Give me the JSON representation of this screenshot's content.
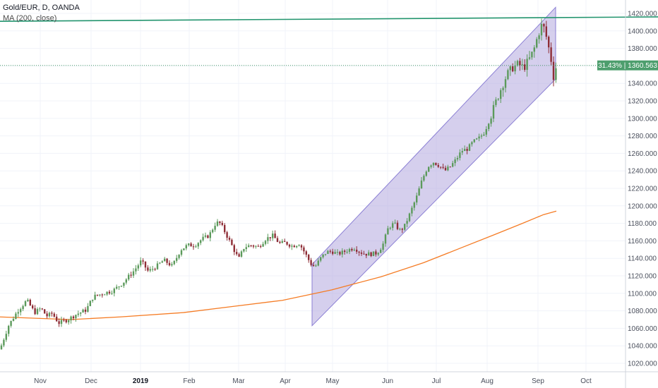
{
  "header": {
    "symbol": "Gold/EUR, D, OANDA",
    "indicator": "MA (200, close)"
  },
  "price_badge": {
    "percent": "31.43%",
    "value": "1360.563"
  },
  "chart_data": {
    "type": "candlestick",
    "title": "Gold/EUR, D, OANDA",
    "ylim": [
      1010,
      1430
    ],
    "y_ticks": [
      1020,
      1040,
      1060,
      1080,
      1100,
      1120,
      1140,
      1160,
      1180,
      1200,
      1220,
      1240,
      1260,
      1280,
      1300,
      1320,
      1340,
      1360,
      1380,
      1400,
      1420
    ],
    "x_ticks": [
      {
        "label": "Nov",
        "bold": false
      },
      {
        "label": "Dec",
        "bold": false
      },
      {
        "label": "2019",
        "bold": true
      },
      {
        "label": "Feb",
        "bold": false
      },
      {
        "label": "Mar",
        "bold": false
      },
      {
        "label": "Apr",
        "bold": false
      },
      {
        "label": "May",
        "bold": false
      },
      {
        "label": "Jun",
        "bold": false
      },
      {
        "label": "Jul",
        "bold": false
      },
      {
        "label": "Aug",
        "bold": false
      },
      {
        "label": "Sep",
        "bold": false
      },
      {
        "label": "Oct",
        "bold": false
      }
    ],
    "price_path": [
      [
        0,
        1036
      ],
      [
        12,
        1063
      ],
      [
        25,
        1080
      ],
      [
        38,
        1092
      ],
      [
        49,
        1078
      ],
      [
        58,
        1083
      ],
      [
        66,
        1074
      ],
      [
        74,
        1077
      ],
      [
        83,
        1066
      ],
      [
        96,
        1070
      ],
      [
        108,
        1076
      ],
      [
        122,
        1081
      ],
      [
        132,
        1096
      ],
      [
        146,
        1100
      ],
      [
        160,
        1103
      ],
      [
        174,
        1112
      ],
      [
        190,
        1126
      ],
      [
        200,
        1137
      ],
      [
        210,
        1125
      ],
      [
        222,
        1131
      ],
      [
        232,
        1138
      ],
      [
        244,
        1131
      ],
      [
        256,
        1150
      ],
      [
        266,
        1155
      ],
      [
        276,
        1155
      ],
      [
        286,
        1162
      ],
      [
        296,
        1166
      ],
      [
        306,
        1181
      ],
      [
        312,
        1180
      ],
      [
        320,
        1168
      ],
      [
        330,
        1152
      ],
      [
        338,
        1139
      ],
      [
        346,
        1153
      ],
      [
        356,
        1155
      ],
      [
        366,
        1153
      ],
      [
        376,
        1162
      ],
      [
        386,
        1166
      ],
      [
        396,
        1157
      ],
      [
        404,
        1158
      ],
      [
        414,
        1154
      ],
      [
        424,
        1157
      ],
      [
        432,
        1146
      ],
      [
        440,
        1134
      ],
      [
        446,
        1130
      ],
      [
        454,
        1140
      ],
      [
        462,
        1147
      ],
      [
        470,
        1148
      ],
      [
        478,
        1145
      ],
      [
        486,
        1147
      ],
      [
        494,
        1150
      ],
      [
        502,
        1152
      ],
      [
        510,
        1147
      ],
      [
        518,
        1145
      ],
      [
        526,
        1145
      ],
      [
        534,
        1146
      ],
      [
        542,
        1155
      ],
      [
        550,
        1175
      ],
      [
        558,
        1180
      ],
      [
        566,
        1172
      ],
      [
        572,
        1175
      ],
      [
        580,
        1190
      ],
      [
        590,
        1210
      ],
      [
        598,
        1230
      ],
      [
        606,
        1245
      ],
      [
        614,
        1250
      ],
      [
        622,
        1246
      ],
      [
        630,
        1240
      ],
      [
        638,
        1245
      ],
      [
        646,
        1253
      ],
      [
        654,
        1263
      ],
      [
        662,
        1265
      ],
      [
        670,
        1273
      ],
      [
        678,
        1277
      ],
      [
        686,
        1284
      ],
      [
        694,
        1300
      ],
      [
        702,
        1318
      ],
      [
        710,
        1335
      ],
      [
        718,
        1350
      ],
      [
        726,
        1358
      ],
      [
        734,
        1362
      ],
      [
        742,
        1358
      ],
      [
        750,
        1368
      ],
      [
        756,
        1378
      ],
      [
        762,
        1395
      ],
      [
        768,
        1408
      ],
      [
        772,
        1400
      ],
      [
        776,
        1385
      ],
      [
        780,
        1370
      ],
      [
        784,
        1348
      ],
      [
        788,
        1360
      ]
    ],
    "ma_200": [
      [
        0,
        1073
      ],
      [
        100,
        1070
      ],
      [
        170,
        1073
      ],
      [
        260,
        1078
      ],
      [
        330,
        1085
      ],
      [
        400,
        1092
      ],
      [
        470,
        1104
      ],
      [
        540,
        1119
      ],
      [
        600,
        1135
      ],
      [
        650,
        1151
      ],
      [
        700,
        1167
      ],
      [
        740,
        1180
      ],
      [
        770,
        1190
      ],
      [
        788,
        1194
      ]
    ],
    "channel": {
      "upper": [
        [
          442,
          1133
        ],
        [
          787,
          1427
        ]
      ],
      "lower": [
        [
          442,
          1063
        ],
        [
          787,
          1345
        ]
      ]
    },
    "resistance_line": [
      [
        0,
        1411
      ],
      [
        932,
        1416
      ]
    ],
    "last_price": 1360.563,
    "colors": {
      "up": "#5b9a5b",
      "down": "#8e2d36",
      "ma": "#f57c25",
      "channel_fill": "#b3a8de",
      "channel_stroke": "#8b7fd4",
      "resistance": "#22946e",
      "badge": "#4d9e6d"
    }
  }
}
